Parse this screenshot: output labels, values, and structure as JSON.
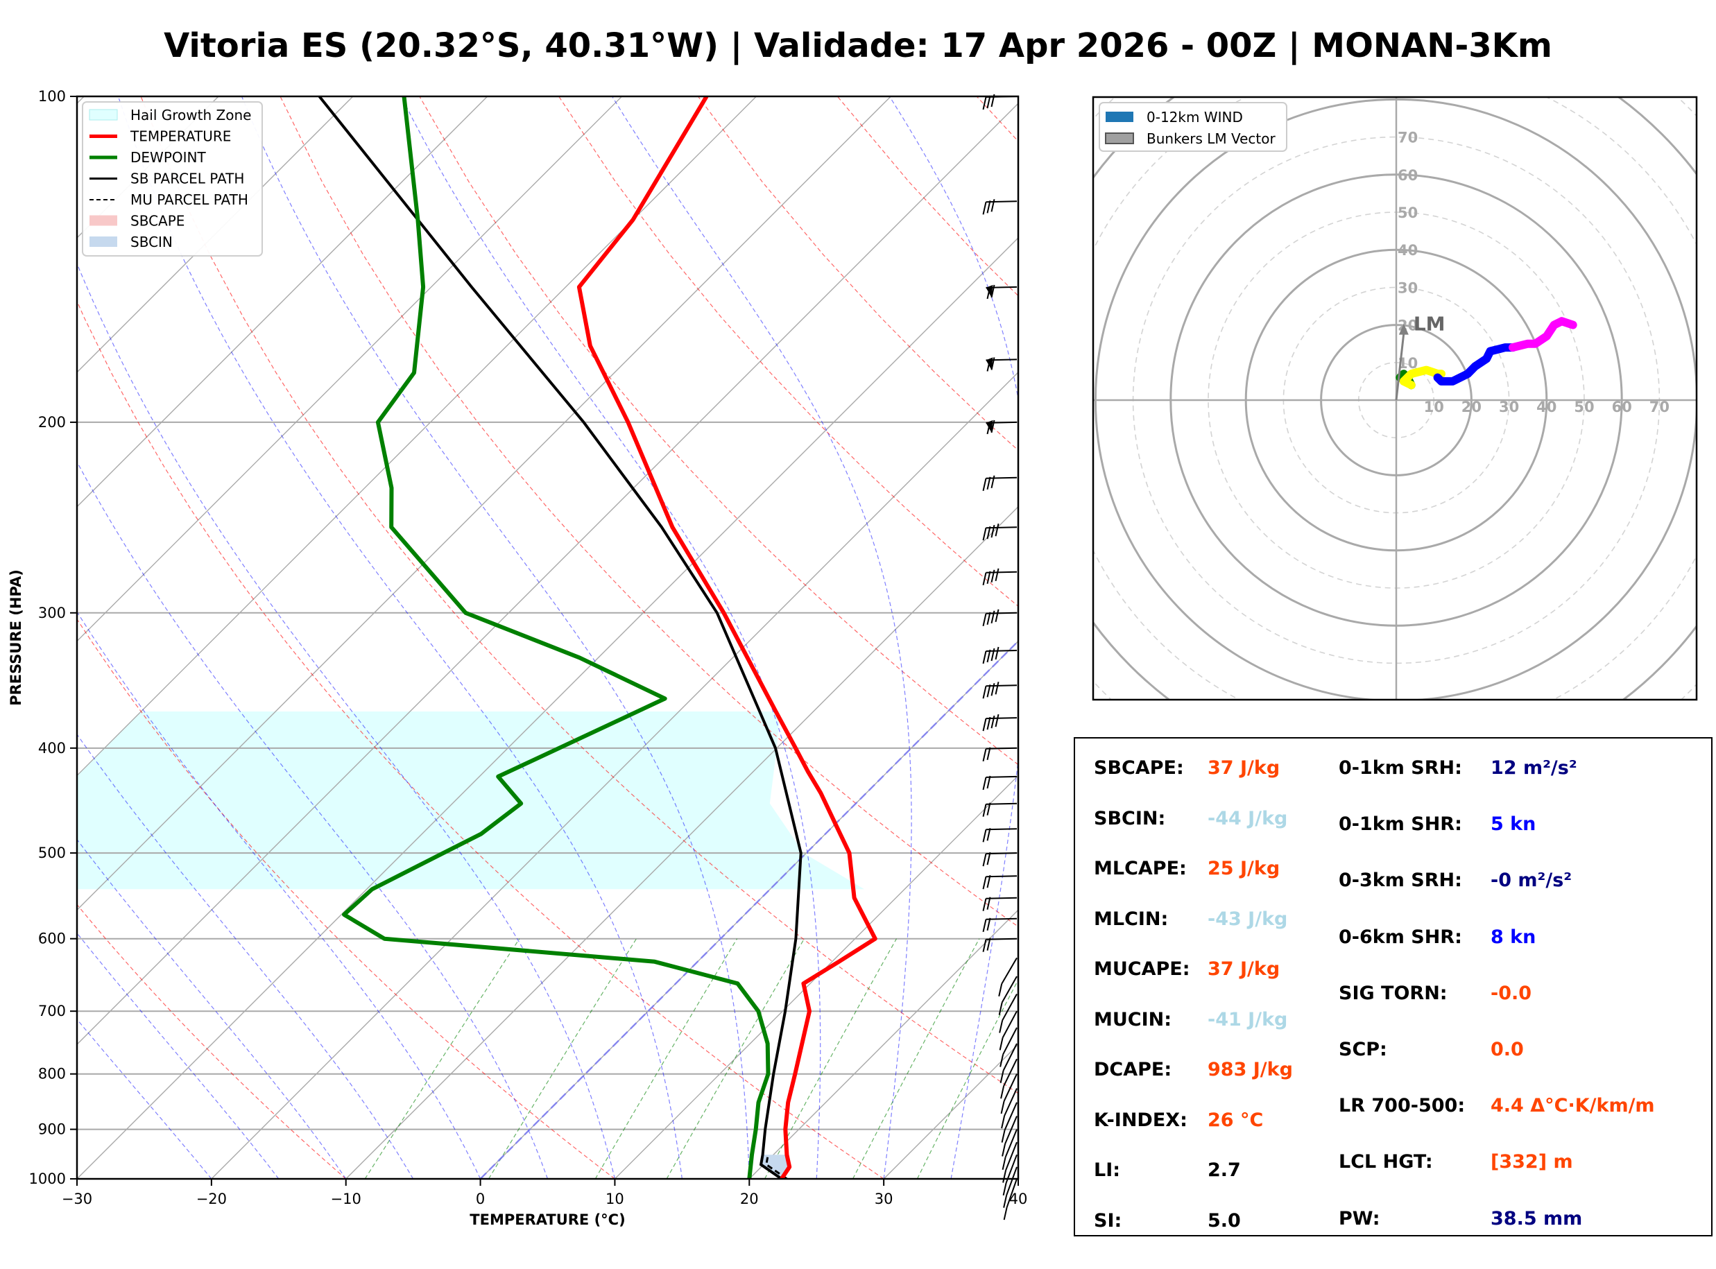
{
  "title": "Vitoria ES (20.32°S, 40.31°W) | Validade: 17 Apr 2026 - 00Z | MONAN-3Km",
  "chart_data": [
    {
      "type": "line",
      "name": "skew-t",
      "xlabel": "TEMPERATURE (°C)",
      "ylabel": "PRESSURE (HPA)",
      "xlim": [
        -30,
        40
      ],
      "ylim": [
        1000,
        100
      ],
      "skew_deg": 45,
      "xticks": [
        -30,
        -20,
        -10,
        0,
        10,
        20,
        30,
        40
      ],
      "yticks": [
        1000,
        900,
        800,
        700,
        600,
        500,
        400,
        300,
        200,
        100
      ],
      "legend": [
        "Hail Growth Zone",
        "TEMPERATURE",
        "DEWPOINT",
        "SB PARCEL PATH",
        "MU PARCEL PATH",
        "SBCAPE",
        "SBCIN"
      ],
      "colors": {
        "temperature": "#ff0000",
        "dewpoint": "#008000",
        "parcel": "#000000",
        "hail": "#e0ffff",
        "sbcape": "#f8c8c8",
        "sbcin": "#c6d9ee"
      },
      "temperature": [
        {
          "p": 1000,
          "t": 22.4
        },
        {
          "p": 975,
          "t": 22.1
        },
        {
          "p": 950,
          "t": 21.0
        },
        {
          "p": 900,
          "t": 19.0
        },
        {
          "p": 850,
          "t": 17.2
        },
        {
          "p": 800,
          "t": 15.6
        },
        {
          "p": 700,
          "t": 12.0
        },
        {
          "p": 660,
          "t": 9.5
        },
        {
          "p": 630,
          "t": 10.5
        },
        {
          "p": 600,
          "t": 11.5
        },
        {
          "p": 550,
          "t": 6.9
        },
        {
          "p": 500,
          "t": 3.2
        },
        {
          "p": 470,
          "t": 0.0
        },
        {
          "p": 440,
          "t": -3.4
        },
        {
          "p": 420,
          "t": -6.0
        },
        {
          "p": 400,
          "t": -8.6
        },
        {
          "p": 370,
          "t": -12.8
        },
        {
          "p": 300,
          "t": -24.0
        },
        {
          "p": 250,
          "t": -34.2
        },
        {
          "p": 200,
          "t": -45.3
        },
        {
          "p": 170,
          "t": -53.8
        },
        {
          "p": 150,
          "t": -59.0
        },
        {
          "p": 130,
          "t": -60.0
        },
        {
          "p": 100,
          "t": -63.7
        }
      ],
      "dewpoint": [
        {
          "p": 1000,
          "t": 20.0
        },
        {
          "p": 950,
          "t": 18.4
        },
        {
          "p": 900,
          "t": 16.8
        },
        {
          "p": 850,
          "t": 15.0
        },
        {
          "p": 800,
          "t": 13.6
        },
        {
          "p": 750,
          "t": 11.3
        },
        {
          "p": 700,
          "t": 8.2
        },
        {
          "p": 660,
          "t": 4.6
        },
        {
          "p": 630,
          "t": -3.2
        },
        {
          "p": 600,
          "t": -25.0
        },
        {
          "p": 570,
          "t": -29.8
        },
        {
          "p": 540,
          "t": -29.6
        },
        {
          "p": 480,
          "t": -25.6
        },
        {
          "p": 450,
          "t": -24.9
        },
        {
          "p": 425,
          "t": -28.6
        },
        {
          "p": 360,
          "t": -22.0
        },
        {
          "p": 330,
          "t": -31.4
        },
        {
          "p": 300,
          "t": -43.2
        },
        {
          "p": 250,
          "t": -55.1
        },
        {
          "p": 230,
          "t": -58.0
        },
        {
          "p": 200,
          "t": -63.9
        },
        {
          "p": 180,
          "t": -64.9
        },
        {
          "p": 150,
          "t": -70.6
        },
        {
          "p": 130,
          "t": -76.0
        },
        {
          "p": 100,
          "t": -86.2
        }
      ],
      "sb_parcel": [
        {
          "p": 1000,
          "t": 22.4
        },
        {
          "p": 970,
          "t": 19.8
        },
        {
          "p": 950,
          "t": 19.2
        },
        {
          "p": 900,
          "t": 17.5
        },
        {
          "p": 850,
          "t": 15.8
        },
        {
          "p": 800,
          "t": 14.0
        },
        {
          "p": 700,
          "t": 10.2
        },
        {
          "p": 600,
          "t": 5.6
        },
        {
          "p": 500,
          "t": -0.4
        },
        {
          "p": 400,
          "t": -10.1
        },
        {
          "p": 300,
          "t": -24.5
        },
        {
          "p": 250,
          "t": -35.0
        },
        {
          "p": 200,
          "t": -48.6
        },
        {
          "p": 150,
          "t": -67.0
        },
        {
          "p": 100,
          "t": -92.5
        }
      ],
      "wind_barbs_hpa": [
        1000,
        975,
        950,
        925,
        900,
        875,
        850,
        825,
        800,
        775,
        750,
        725,
        700,
        675,
        650,
        625,
        600,
        575,
        550,
        525,
        500,
        475,
        450,
        425,
        400,
        375,
        350,
        325,
        300,
        275,
        250,
        225,
        200,
        175,
        150,
        125,
        100
      ]
    },
    {
      "type": "scatter",
      "name": "hodograph",
      "legend": [
        "0-12km WIND",
        "Bunkers LM Vector"
      ],
      "ring_labels": [
        10,
        20,
        30,
        40,
        50,
        60,
        70
      ],
      "storm_motion_label": "LM",
      "storm_motion": {
        "u": 2,
        "v": 20
      },
      "series": [
        {
          "name": "0-1km",
          "color": "#008000",
          "points": [
            [
              1,
              6
            ],
            [
              2,
              7
            ],
            [
              3,
              6
            ],
            [
              4,
              4
            ]
          ]
        },
        {
          "name": "1-3km",
          "color": "#ffff00",
          "points": [
            [
              4,
              4
            ],
            [
              2,
              5
            ],
            [
              4,
              7
            ],
            [
              8,
              8
            ],
            [
              11,
              7
            ],
            [
              12,
              7
            ]
          ]
        },
        {
          "name": "3-6km",
          "color": "#0000ff",
          "points": [
            [
              11,
              6
            ],
            [
              12,
              5
            ],
            [
              15,
              5
            ],
            [
              19,
              7
            ],
            [
              21,
              9
            ],
            [
              24,
              11
            ],
            [
              25,
              13
            ],
            [
              29,
              14
            ],
            [
              31,
              14
            ]
          ]
        },
        {
          "name": "6-12km",
          "color": "#ff00ff",
          "points": [
            [
              31,
              14
            ],
            [
              35,
              15
            ],
            [
              37,
              15
            ],
            [
              40,
              17
            ],
            [
              42,
              20
            ],
            [
              44,
              21
            ],
            [
              47,
              20
            ]
          ]
        }
      ]
    }
  ],
  "params_left": [
    {
      "label": "SBCAPE:",
      "value": "37 J/kg",
      "color": "#ff4500"
    },
    {
      "label": "SBCIN:",
      "value": "-44 J/kg",
      "color": "#add8e6"
    },
    {
      "label": "MLCAPE:",
      "value": "25 J/kg",
      "color": "#ff4500"
    },
    {
      "label": "MLCIN:",
      "value": "-43 J/kg",
      "color": "#add8e6"
    },
    {
      "label": "MUCAPE:",
      "value": "37 J/kg",
      "color": "#ff4500"
    },
    {
      "label": "MUCIN:",
      "value": "-41 J/kg",
      "color": "#add8e6"
    },
    {
      "label": "DCAPE:",
      "value": "983 J/kg",
      "color": "#ff4500"
    },
    {
      "label": "K-INDEX:",
      "value": "26 °C",
      "color": "#ff4500"
    },
    {
      "label": "LI:",
      "value": "2.7",
      "color": "#000000"
    },
    {
      "label": "SI:",
      "value": "5.0",
      "color": "#000000"
    }
  ],
  "params_right": [
    {
      "label": "0-1km SRH:",
      "value": "12 m²/s²",
      "color": "#000080"
    },
    {
      "label": "0-1km SHR:",
      "value": "5 kn",
      "color": "#0000ff"
    },
    {
      "label": "0-3km SRH:",
      "value": "-0 m²/s²",
      "color": "#000080"
    },
    {
      "label": "0-6km SHR:",
      "value": "8 kn",
      "color": "#0000ff"
    },
    {
      "label": "SIG TORN:",
      "value": "-0.0",
      "color": "#ff4500"
    },
    {
      "label": "SCP:",
      "value": "0.0",
      "color": "#ff4500"
    },
    {
      "label": "LR 700-500:",
      "value": "4.4 Δ°C·K/km/m",
      "color": "#ff4500"
    },
    {
      "label": "LCL HGT:",
      "value": "[332] m",
      "color": "#ff4500"
    },
    {
      "label": "PW:",
      "value": "38.5 mm",
      "color": "#000080"
    }
  ]
}
